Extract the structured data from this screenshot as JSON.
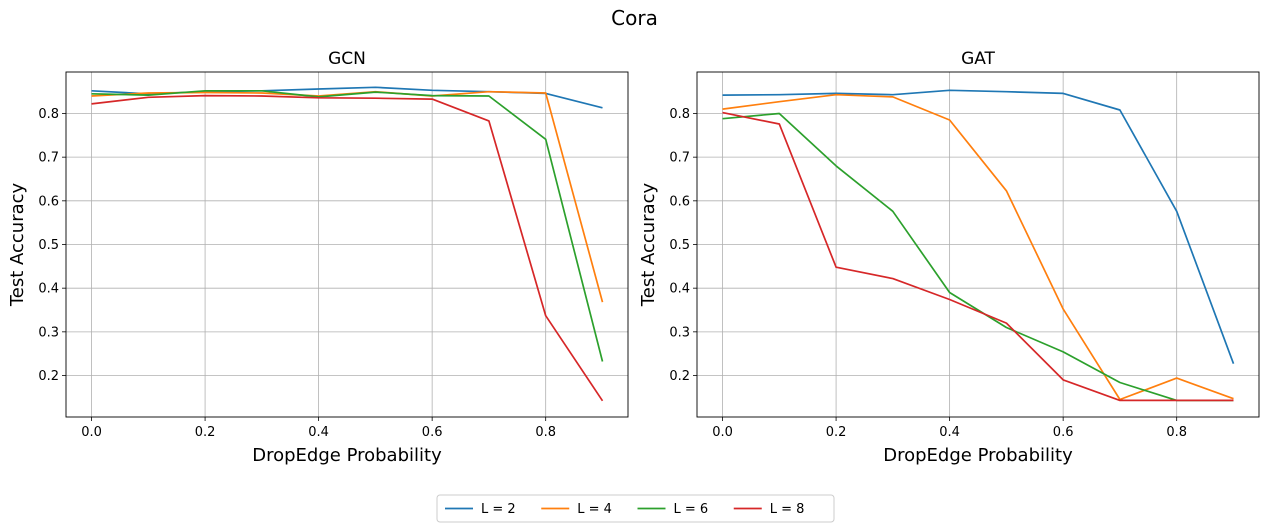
{
  "figure": {
    "suptitle": "Cora"
  },
  "legend": {
    "placement": "bottom-center"
  },
  "colors": {
    "L2": "#1f77b4",
    "L4": "#ff7f0e",
    "L6": "#2ca02c",
    "L8": "#d62728",
    "grid": "#b0b0b0"
  },
  "chart_data": [
    {
      "type": "line",
      "title": "GCN",
      "xlabel": "DropEdge Probability",
      "ylabel": "Test Accuracy",
      "grid": true,
      "xlim": [
        -0.045,
        0.945
      ],
      "ylim": [
        0.105,
        0.895
      ],
      "xticks": [
        0.0,
        0.2,
        0.4,
        0.6,
        0.8
      ],
      "xtick_labels": [
        "0.0",
        "0.2",
        "0.4",
        "0.6",
        "0.8"
      ],
      "yticks": [
        0.2,
        0.3,
        0.4,
        0.5,
        0.6,
        0.7,
        0.8
      ],
      "ytick_labels": [
        "0.2",
        "0.3",
        "0.4",
        "0.5",
        "0.6",
        "0.7",
        "0.8"
      ],
      "x": [
        0.0,
        0.1,
        0.2,
        0.3,
        0.4,
        0.5,
        0.6,
        0.7,
        0.8,
        0.9
      ],
      "series": [
        {
          "name": "L = 2",
          "color": "#1f77b4",
          "values": [
            0.852,
            0.845,
            0.85,
            0.852,
            0.856,
            0.86,
            0.853,
            0.85,
            0.846,
            0.813
          ]
        },
        {
          "name": "L = 4",
          "color": "#ff7f0e",
          "values": [
            0.84,
            0.847,
            0.848,
            0.847,
            0.84,
            0.85,
            0.84,
            0.85,
            0.847,
            0.368
          ]
        },
        {
          "name": "L = 6",
          "color": "#2ca02c",
          "values": [
            0.845,
            0.842,
            0.852,
            0.852,
            0.838,
            0.849,
            0.841,
            0.84,
            0.741,
            0.232
          ]
        },
        {
          "name": "L = 8",
          "color": "#d62728",
          "values": [
            0.822,
            0.837,
            0.841,
            0.84,
            0.836,
            0.835,
            0.833,
            0.783,
            0.337,
            0.142
          ]
        }
      ]
    },
    {
      "type": "line",
      "title": "GAT",
      "xlabel": "DropEdge Probability",
      "ylabel": "Test Accuracy",
      "grid": true,
      "xlim": [
        -0.045,
        0.945
      ],
      "ylim": [
        0.105,
        0.895
      ],
      "xticks": [
        0.0,
        0.2,
        0.4,
        0.6,
        0.8
      ],
      "xtick_labels": [
        "0.0",
        "0.2",
        "0.4",
        "0.6",
        "0.8"
      ],
      "yticks": [
        0.2,
        0.3,
        0.4,
        0.5,
        0.6,
        0.7,
        0.8
      ],
      "ytick_labels": [
        "0.2",
        "0.3",
        "0.4",
        "0.5",
        "0.6",
        "0.7",
        "0.8"
      ],
      "x": [
        0.0,
        0.1,
        0.2,
        0.3,
        0.4,
        0.5,
        0.6,
        0.7,
        0.8,
        0.9
      ],
      "series": [
        {
          "name": "L = 2",
          "color": "#1f77b4",
          "values": [
            0.842,
            0.843,
            0.846,
            0.843,
            0.853,
            0.85,
            0.846,
            0.808,
            0.576,
            0.227
          ]
        },
        {
          "name": "L = 4",
          "color": "#ff7f0e",
          "values": [
            0.81,
            0.827,
            0.843,
            0.838,
            0.785,
            0.623,
            0.352,
            0.145,
            0.194,
            0.147
          ]
        },
        {
          "name": "L = 6",
          "color": "#2ca02c",
          "values": [
            0.788,
            0.8,
            0.68,
            0.576,
            0.39,
            0.31,
            0.254,
            0.184,
            0.143,
            0.143
          ]
        },
        {
          "name": "L = 8",
          "color": "#d62728",
          "values": [
            0.802,
            0.776,
            0.448,
            0.422,
            0.374,
            0.32,
            0.19,
            0.143,
            0.143,
            0.143
          ]
        }
      ]
    }
  ]
}
